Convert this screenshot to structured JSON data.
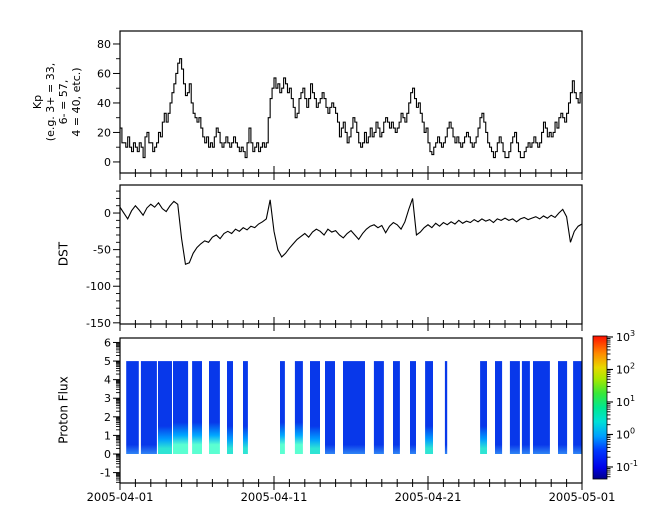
{
  "figure": {
    "background": "#ffffff",
    "axis_color": "#000000",
    "line_color": "#000000"
  },
  "x_axis": {
    "tick_labels": [
      "2005-04-01",
      "2005-04-11",
      "2005-04-21",
      "2005-05-01"
    ],
    "major_days": [
      0,
      10,
      20,
      30
    ],
    "minor_step_days": 1,
    "range_days": [
      0,
      30
    ]
  },
  "chart_data": [
    {
      "type": "line",
      "name": "kp-index",
      "step": true,
      "ylabel_lines": [
        "Kp",
        "(e.g. 3+ = 33,",
        "6- = 57,",
        "4 = 40, etc.)"
      ],
      "yticks": [
        0,
        20,
        40,
        60,
        80
      ],
      "y_minor_step": 10,
      "ylim": [
        -7.5,
        88.8
      ],
      "x_step_days": 0.125,
      "values": [
        23,
        13,
        13,
        10,
        17,
        10,
        7,
        13,
        10,
        7,
        13,
        10,
        3,
        17,
        20,
        13,
        13,
        7,
        10,
        13,
        20,
        17,
        27,
        33,
        27,
        33,
        40,
        47,
        53,
        60,
        67,
        70,
        63,
        53,
        45,
        47,
        53,
        40,
        33,
        30,
        27,
        30,
        23,
        17,
        13,
        17,
        10,
        13,
        10,
        17,
        23,
        20,
        13,
        10,
        13,
        17,
        13,
        10,
        13,
        17,
        13,
        10,
        7,
        10,
        7,
        3,
        13,
        23,
        13,
        7,
        10,
        13,
        7,
        10,
        13,
        10,
        13,
        30,
        43,
        50,
        57,
        50,
        53,
        47,
        50,
        57,
        53,
        47,
        50,
        43,
        37,
        30,
        33,
        43,
        47,
        50,
        43,
        37,
        43,
        53,
        47,
        43,
        37,
        40,
        43,
        47,
        43,
        37,
        33,
        37,
        40,
        37,
        33,
        27,
        17,
        23,
        27,
        20,
        13,
        17,
        23,
        30,
        27,
        20,
        13,
        10,
        13,
        20,
        13,
        17,
        23,
        17,
        20,
        27,
        23,
        17,
        20,
        27,
        30,
        27,
        23,
        27,
        23,
        20,
        23,
        27,
        33,
        30,
        27,
        33,
        40,
        47,
        50,
        43,
        37,
        40,
        33,
        27,
        20,
        23,
        13,
        7,
        5,
        10,
        13,
        17,
        13,
        10,
        13,
        17,
        23,
        27,
        23,
        17,
        13,
        17,
        13,
        10,
        13,
        17,
        20,
        17,
        13,
        10,
        13,
        17,
        23,
        30,
        33,
        27,
        20,
        13,
        10,
        7,
        3,
        7,
        13,
        17,
        13,
        7,
        3,
        3,
        7,
        13,
        17,
        20,
        13,
        7,
        3,
        3,
        7,
        10,
        13,
        10,
        13,
        17,
        13,
        10,
        13,
        20,
        27,
        23,
        17,
        20,
        17,
        20,
        27,
        23,
        30,
        33,
        30,
        27,
        33,
        40,
        47,
        55,
        47,
        43,
        40,
        47
      ]
    },
    {
      "type": "line",
      "name": "dst",
      "step": false,
      "ylabel_lines": [
        "DST"
      ],
      "yticks": [
        0,
        -50,
        -100,
        -150
      ],
      "y_minor_step": 10,
      "ylim": [
        -151.6,
        38.3
      ],
      "x_step_days": 0.25,
      "values": [
        8,
        0,
        -8,
        3,
        10,
        4,
        -3,
        7,
        12,
        8,
        14,
        6,
        2,
        10,
        16,
        12,
        -35,
        -70,
        -68,
        -55,
        -47,
        -42,
        -38,
        -40,
        -33,
        -30,
        -35,
        -28,
        -25,
        -28,
        -22,
        -25,
        -20,
        -23,
        -18,
        -20,
        -15,
        -12,
        -8,
        18,
        -25,
        -50,
        -60,
        -55,
        -48,
        -42,
        -36,
        -32,
        -28,
        -33,
        -26,
        -22,
        -25,
        -30,
        -22,
        -26,
        -24,
        -30,
        -34,
        -28,
        -24,
        -30,
        -36,
        -28,
        -22,
        -18,
        -16,
        -20,
        -17,
        -27,
        -18,
        -13,
        -16,
        -22,
        -12,
        5,
        20,
        -30,
        -26,
        -20,
        -16,
        -20,
        -14,
        -18,
        -13,
        -16,
        -12,
        -15,
        -10,
        -14,
        -11,
        -13,
        -9,
        -12,
        -8,
        -11,
        -9,
        -13,
        -8,
        -10,
        -7,
        -10,
        -8,
        -12,
        -8,
        -6,
        -9,
        -7,
        -5,
        -8,
        -4,
        -7,
        -3,
        -6,
        0,
        5,
        -5,
        -40,
        -25,
        -18,
        -15
      ]
    },
    {
      "type": "heatmap",
      "name": "proton-flux",
      "ylabel_lines": [
        "Proton Flux"
      ],
      "yticks": [
        -1,
        0,
        1,
        2,
        3,
        4,
        5,
        6
      ],
      "log_minor_ticks": true,
      "ylim": [
        -1.56,
        6.24
      ],
      "stripe_y_range": [
        0,
        5
      ],
      "stripes": [
        [
          0.4,
          1.22,
          0
        ],
        [
          1.36,
          2.4,
          0
        ],
        [
          2.47,
          3.38,
          1
        ],
        [
          3.44,
          4.42,
          2
        ],
        [
          4.68,
          5.32,
          2
        ],
        [
          5.78,
          6.49,
          2
        ],
        [
          6.95,
          7.34,
          1
        ],
        [
          7.99,
          8.31,
          1
        ],
        [
          10.39,
          10.71,
          2
        ],
        [
          11.36,
          11.88,
          2
        ],
        [
          12.34,
          12.99,
          1
        ],
        [
          13.31,
          13.96,
          0
        ],
        [
          14.48,
          15.91,
          0
        ],
        [
          16.49,
          17.14,
          0
        ],
        [
          17.73,
          18.18,
          0
        ],
        [
          18.83,
          19.22,
          0
        ],
        [
          19.81,
          20.32,
          1
        ],
        [
          21.1,
          21.25,
          0
        ],
        [
          23.38,
          23.83,
          1
        ],
        [
          24.35,
          24.81,
          0
        ],
        [
          25.32,
          25.97,
          0
        ],
        [
          26.1,
          26.62,
          0
        ],
        [
          26.82,
          27.92,
          0
        ],
        [
          28.44,
          29.03,
          0
        ],
        [
          29.42,
          30.0,
          0
        ]
      ],
      "palette": {
        "body": "#0838ea",
        "glow0_bottom": "#2f85f5",
        "glow1_mid": "#009cff",
        "glow1_bottom": "#2ee4d4",
        "glow2_mid": "#00a8ff",
        "glow2_bottom": "#5bffd2"
      },
      "colorbar": {
        "tick_exponents": [
          -1,
          0,
          1,
          2,
          3
        ],
        "tick_label_base": "10",
        "range_exponents": [
          -1.37,
          3.03
        ],
        "gradient_bottom_to_top": [
          [
            0.0,
            "#000088"
          ],
          [
            0.08,
            "#0000e8"
          ],
          [
            0.2,
            "#0038ff"
          ],
          [
            0.3,
            "#00a0ff"
          ],
          [
            0.4,
            "#00e0d8"
          ],
          [
            0.5,
            "#00e890"
          ],
          [
            0.6,
            "#38e838"
          ],
          [
            0.7,
            "#a8e800"
          ],
          [
            0.78,
            "#e8d800"
          ],
          [
            0.88,
            "#ff8800"
          ],
          [
            1.0,
            "#ff1000"
          ]
        ]
      }
    }
  ]
}
